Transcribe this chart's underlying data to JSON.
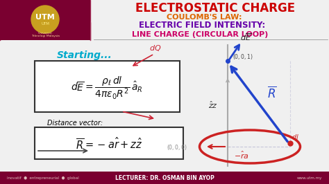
{
  "title": "ELECTROSTATIC CHARGE",
  "subtitle1": "COULOMB'S LAW:",
  "subtitle2": "ELECTRIC FIELD INTENSITY:",
  "subtitle3": "LINE CHARGE (CIRCULAR LOOP)",
  "starting_text": "Starting...",
  "bg_color": "#f0f0f0",
  "title_color": "#cc0000",
  "sub1_color": "#dd6600",
  "sub2_color": "#6600aa",
  "sub3_color": "#cc0066",
  "starting_color": "#00aacc",
  "formula_color": "#111111",
  "box_border_color": "#333333",
  "arrow_blue_color": "#2244cc",
  "arrow_red_color": "#cc2222",
  "circle_color": "#cc2222",
  "header_bg": "#7a0030",
  "footer_bg": "#7a0030",
  "utm_gold": "#c8a020",
  "distance_label": "Distance vector:",
  "footer_left": "inovatif  ●  entrepreneurial  ●  global",
  "footer_center": "LECTURER: DR. OSMAN BIN AYOP",
  "footer_right": "www.utm.my"
}
